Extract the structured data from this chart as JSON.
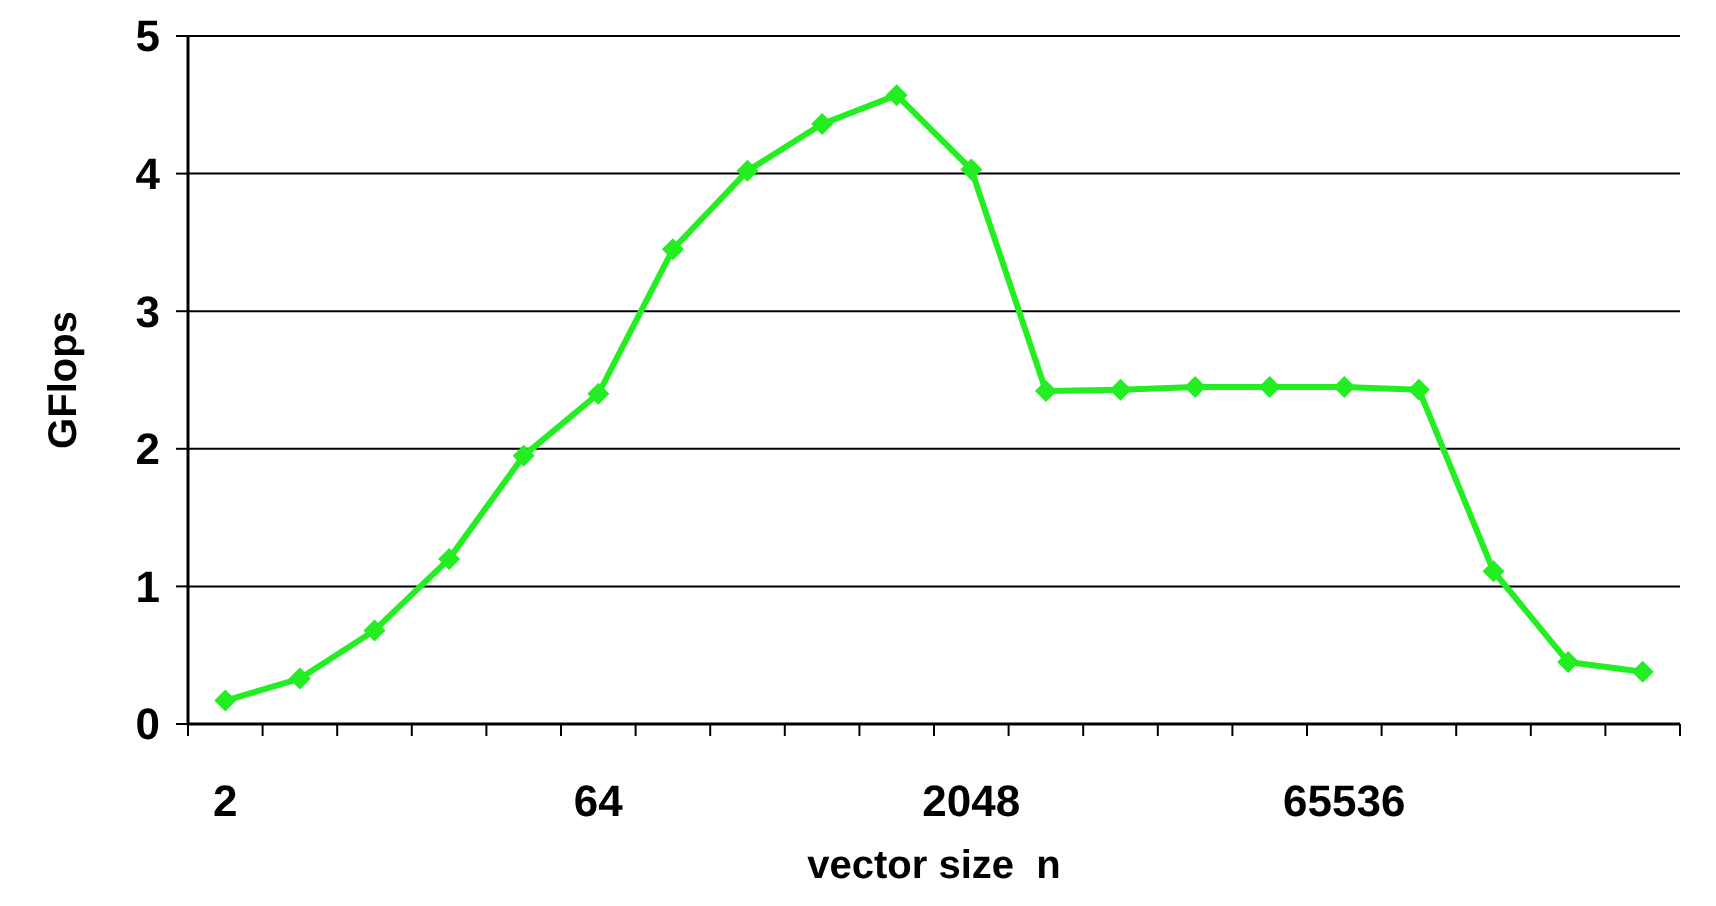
{
  "chart_data": {
    "type": "line",
    "xlabel": "vector size  n",
    "ylabel": "GFlops",
    "categories": [
      "2",
      null,
      null,
      null,
      null,
      "64",
      null,
      null,
      null,
      null,
      "2048",
      null,
      null,
      null,
      null,
      "65536",
      null,
      null,
      null,
      null
    ],
    "series": [
      {
        "color": "#22ee22",
        "values": [
          0.17,
          0.33,
          0.68,
          1.2,
          1.95,
          2.4,
          3.45,
          4.02,
          4.36,
          4.57,
          4.03,
          2.42,
          2.43,
          2.45,
          2.45,
          2.45,
          2.43,
          1.11,
          0.45,
          0.38
        ]
      }
    ],
    "ylim": [
      0,
      5
    ],
    "yticks": [
      0,
      1,
      2,
      3,
      4,
      5
    ],
    "grid": "y",
    "marker": "diamond",
    "line_style": "solid"
  }
}
